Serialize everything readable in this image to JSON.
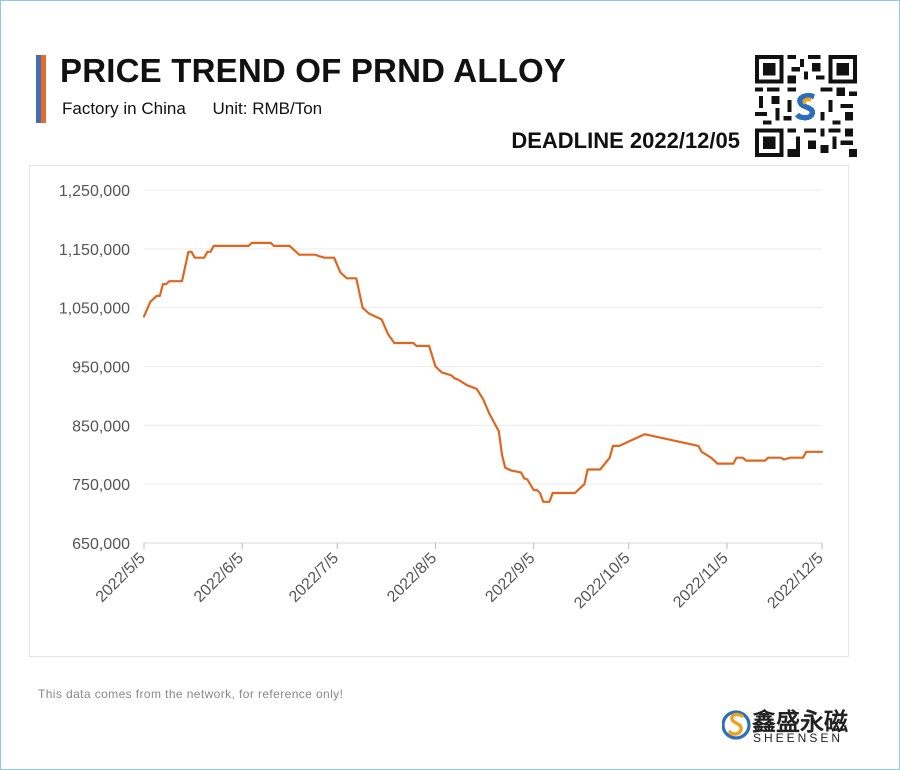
{
  "header": {
    "title": "PRICE TREND OF PRND ALLOY",
    "subtitle_left": "Factory in China",
    "subtitle_right": "Unit: RMB/Ton",
    "deadline": "DEADLINE 2022/12/05"
  },
  "footer": {
    "note": "This data comes from the network, for reference only!",
    "brand_cn": "鑫盛永磁",
    "brand_en": "SHEENSEN"
  },
  "colors": {
    "line": "#e0661e",
    "accent_blue": "#3f6fb5",
    "accent_orange": "#e66a2c"
  },
  "icons": {
    "qr": "qr-code-icon",
    "logo": "sheensen-logo-icon"
  },
  "chart_data": {
    "type": "line",
    "title": "PRICE TREND OF PRND ALLOY",
    "xlabel": "",
    "ylabel": "",
    "ylim": [
      650000,
      1250000
    ],
    "yticks": [
      650000,
      750000,
      850000,
      950000,
      1050000,
      1150000,
      1250000
    ],
    "ytick_labels": [
      "650,000",
      "750,000",
      "850,000",
      "950,000",
      "1,050,000",
      "1,150,000",
      "1,250,000"
    ],
    "xlim": [
      "2022-05-05",
      "2022-12-05"
    ],
    "xticks": [
      "2022-05-05",
      "2022-06-05",
      "2022-07-05",
      "2022-08-05",
      "2022-09-05",
      "2022-10-05",
      "2022-11-05",
      "2022-12-05"
    ],
    "xtick_labels": [
      "2022/5/5",
      "2022/6/5",
      "2022/7/5",
      "2022/8/5",
      "2022/9/5",
      "2022/10/5",
      "2022/11/5",
      "2022/12/5"
    ],
    "grid": true,
    "legend": "none",
    "series": [
      {
        "name": "",
        "points": [
          [
            "2022-05-05",
            1035000
          ],
          [
            "2022-05-07",
            1060000
          ],
          [
            "2022-05-09",
            1070000
          ],
          [
            "2022-05-10",
            1070000
          ],
          [
            "2022-05-11",
            1090000
          ],
          [
            "2022-05-12",
            1090000
          ],
          [
            "2022-05-13",
            1095000
          ],
          [
            "2022-05-16",
            1095000
          ],
          [
            "2022-05-17",
            1095000
          ],
          [
            "2022-05-18",
            1120000
          ],
          [
            "2022-05-19",
            1145000
          ],
          [
            "2022-05-20",
            1145000
          ],
          [
            "2022-05-21",
            1135000
          ],
          [
            "2022-05-24",
            1135000
          ],
          [
            "2022-05-25",
            1145000
          ],
          [
            "2022-05-26",
            1145000
          ],
          [
            "2022-05-27",
            1155000
          ],
          [
            "2022-06-01",
            1155000
          ],
          [
            "2022-06-06",
            1155000
          ],
          [
            "2022-06-07",
            1155000
          ],
          [
            "2022-06-08",
            1160000
          ],
          [
            "2022-06-13",
            1160000
          ],
          [
            "2022-06-14",
            1160000
          ],
          [
            "2022-06-15",
            1155000
          ],
          [
            "2022-06-20",
            1155000
          ],
          [
            "2022-06-23",
            1140000
          ],
          [
            "2022-06-28",
            1140000
          ],
          [
            "2022-06-29",
            1138000
          ],
          [
            "2022-07-01",
            1135000
          ],
          [
            "2022-07-04",
            1135000
          ],
          [
            "2022-07-06",
            1110000
          ],
          [
            "2022-07-08",
            1100000
          ],
          [
            "2022-07-11",
            1100000
          ],
          [
            "2022-07-13",
            1050000
          ],
          [
            "2022-07-15",
            1040000
          ],
          [
            "2022-07-19",
            1030000
          ],
          [
            "2022-07-21",
            1005000
          ],
          [
            "2022-07-23",
            990000
          ],
          [
            "2022-07-25",
            990000
          ],
          [
            "2022-07-29",
            990000
          ],
          [
            "2022-07-30",
            985000
          ],
          [
            "2022-08-01",
            985000
          ],
          [
            "2022-08-03",
            985000
          ],
          [
            "2022-08-05",
            950000
          ],
          [
            "2022-08-07",
            940000
          ],
          [
            "2022-08-10",
            935000
          ],
          [
            "2022-08-11",
            930000
          ],
          [
            "2022-08-12",
            928000
          ],
          [
            "2022-08-15",
            918000
          ],
          [
            "2022-08-18",
            912000
          ],
          [
            "2022-08-20",
            895000
          ],
          [
            "2022-08-22",
            870000
          ],
          [
            "2022-08-25",
            840000
          ],
          [
            "2022-08-26",
            800000
          ],
          [
            "2022-08-27",
            778000
          ],
          [
            "2022-08-29",
            773000
          ],
          [
            "2022-09-01",
            770000
          ],
          [
            "2022-09-02",
            760000
          ],
          [
            "2022-09-03",
            758000
          ],
          [
            "2022-09-05",
            740000
          ],
          [
            "2022-09-06",
            740000
          ],
          [
            "2022-09-07",
            735000
          ],
          [
            "2022-09-08",
            720000
          ],
          [
            "2022-09-10",
            720000
          ],
          [
            "2022-09-11",
            735000
          ],
          [
            "2022-09-18",
            735000
          ],
          [
            "2022-09-21",
            750000
          ],
          [
            "2022-09-22",
            775000
          ],
          [
            "2022-09-26",
            775000
          ],
          [
            "2022-09-29",
            795000
          ],
          [
            "2022-09-30",
            815000
          ],
          [
            "2022-10-02",
            815000
          ],
          [
            "2022-10-10",
            835000
          ],
          [
            "2022-10-27",
            815000
          ],
          [
            "2022-10-28",
            805000
          ],
          [
            "2022-10-31",
            795000
          ],
          [
            "2022-11-02",
            785000
          ],
          [
            "2022-11-07",
            785000
          ],
          [
            "2022-11-08",
            795000
          ],
          [
            "2022-11-10",
            795000
          ],
          [
            "2022-11-11",
            790000
          ],
          [
            "2022-11-17",
            790000
          ],
          [
            "2022-11-18",
            795000
          ],
          [
            "2022-11-22",
            795000
          ],
          [
            "2022-11-23",
            792000
          ],
          [
            "2022-11-25",
            795000
          ],
          [
            "2022-11-29",
            795000
          ],
          [
            "2022-11-30",
            805000
          ],
          [
            "2022-12-05",
            805000
          ]
        ]
      }
    ]
  }
}
